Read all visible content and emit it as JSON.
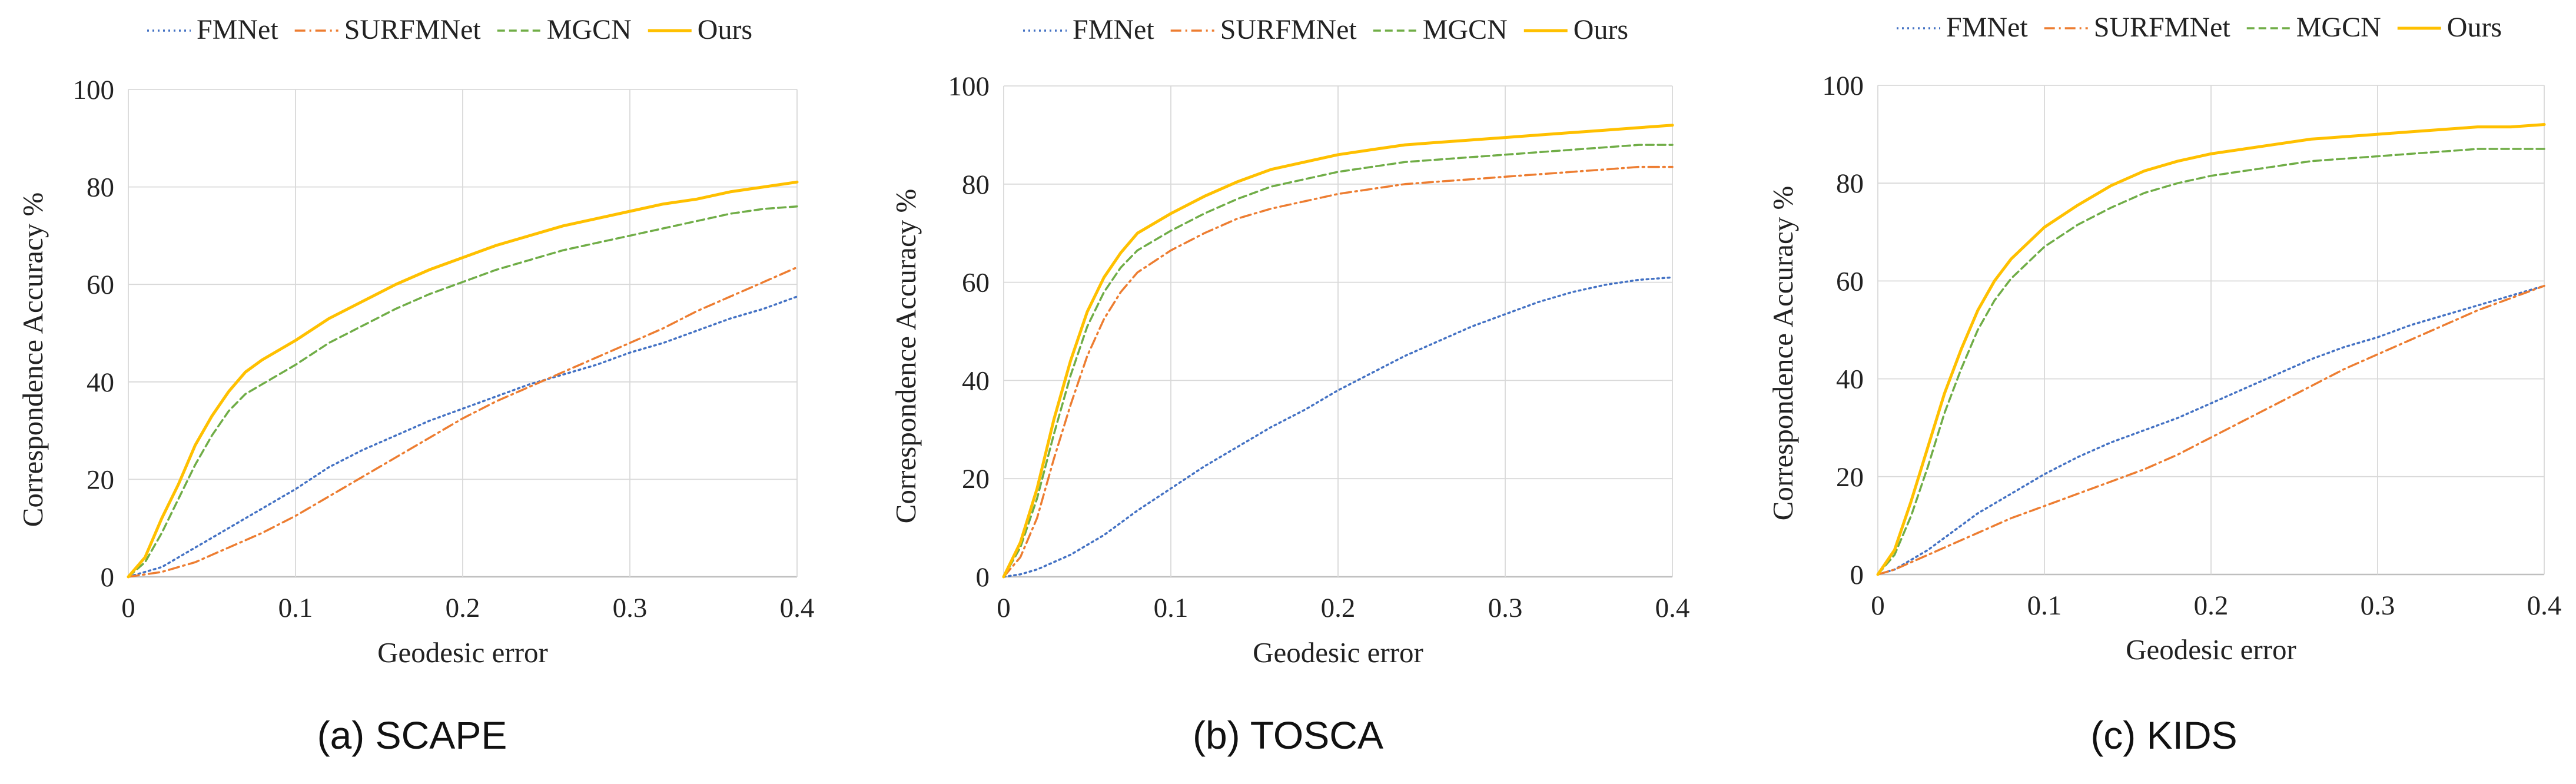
{
  "legend": [
    {
      "name": "FMNet",
      "color": "#4472C4",
      "dash": "dotted"
    },
    {
      "name": "SURFMNet",
      "color": "#ED7D31",
      "dash": "dashdot"
    },
    {
      "name": "MGCN",
      "color": "#70AD47",
      "dash": "dashed"
    },
    {
      "name": "Ours",
      "color": "#FFC000",
      "dash": "solid"
    }
  ],
  "chart_data": [
    {
      "type": "line",
      "caption": "(a) SCAPE",
      "xlabel": "Geodesic error",
      "ylabel": "Correspondence Accuracy %",
      "xlim": [
        0,
        0.4
      ],
      "ylim": [
        0,
        100
      ],
      "xticks": [
        "0",
        "0.1",
        "0.2",
        "0.3",
        "0.4"
      ],
      "yticks": [
        "0",
        "20",
        "40",
        "60",
        "80",
        "100"
      ],
      "x": [
        0,
        0.01,
        0.02,
        0.03,
        0.04,
        0.05,
        0.06,
        0.07,
        0.08,
        0.1,
        0.12,
        0.14,
        0.16,
        0.18,
        0.2,
        0.22,
        0.24,
        0.26,
        0.28,
        0.3,
        0.32,
        0.34,
        0.36,
        0.38,
        0.4
      ],
      "series": [
        {
          "name": "FMNet",
          "values": [
            0,
            1,
            2,
            4,
            6,
            8,
            10,
            12,
            14,
            18,
            22.5,
            26,
            29,
            32,
            34.5,
            37,
            39.5,
            41.5,
            43.5,
            46,
            48,
            50.5,
            53,
            55,
            57.5
          ]
        },
        {
          "name": "SURFMNet",
          "values": [
            0,
            0.5,
            1,
            2,
            3,
            4.5,
            6,
            7.5,
            9,
            12.5,
            16.5,
            20.5,
            24.5,
            28.5,
            32.5,
            36,
            39,
            42,
            45,
            48,
            51,
            54.5,
            57.5,
            60.5,
            63.5
          ]
        },
        {
          "name": "MGCN",
          "values": [
            0,
            3,
            9,
            16,
            23,
            29,
            34,
            37.5,
            39.5,
            43.5,
            48,
            51.5,
            55,
            58,
            60.5,
            63,
            65,
            67,
            68.5,
            70,
            71.5,
            73,
            74.5,
            75.5,
            76
          ]
        },
        {
          "name": "Ours",
          "values": [
            0,
            4,
            12,
            19,
            27,
            33,
            38,
            42,
            44.5,
            48.5,
            53,
            56.5,
            60,
            63,
            65.5,
            68,
            70,
            72,
            73.5,
            75,
            76.5,
            77.5,
            79,
            80,
            81
          ]
        }
      ]
    },
    {
      "type": "line",
      "caption": "(b) TOSCA",
      "xlabel": "Geodesic error",
      "ylabel": "Correspondence Accuracy %",
      "xlim": [
        0,
        0.4
      ],
      "ylim": [
        0,
        100
      ],
      "xticks": [
        "0",
        "0.1",
        "0.2",
        "0.3",
        "0.4"
      ],
      "yticks": [
        "0",
        "20",
        "40",
        "60",
        "80",
        "100"
      ],
      "x": [
        0,
        0.01,
        0.02,
        0.03,
        0.04,
        0.05,
        0.06,
        0.07,
        0.08,
        0.1,
        0.12,
        0.14,
        0.16,
        0.18,
        0.2,
        0.22,
        0.24,
        0.26,
        0.28,
        0.3,
        0.32,
        0.34,
        0.36,
        0.38,
        0.4
      ],
      "series": [
        {
          "name": "FMNet",
          "values": [
            0,
            0.5,
            1.5,
            3,
            4.5,
            6.5,
            8.5,
            11,
            13.5,
            18,
            22.5,
            26.5,
            30.5,
            34,
            38,
            41.5,
            45,
            48,
            51,
            53.5,
            56,
            58,
            59.5,
            60.5,
            61
          ]
        },
        {
          "name": "SURFMNet",
          "values": [
            0,
            4,
            12,
            24,
            35,
            45,
            52.5,
            58,
            62,
            66.5,
            70,
            73,
            75,
            76.5,
            78,
            79,
            80,
            80.5,
            81,
            81.5,
            82,
            82.5,
            83,
            83.5,
            83.5
          ]
        },
        {
          "name": "MGCN",
          "values": [
            0,
            6,
            16,
            29,
            41,
            51,
            58,
            63,
            66.5,
            70.5,
            74,
            77,
            79.5,
            81,
            82.5,
            83.5,
            84.5,
            85,
            85.5,
            86,
            86.5,
            87,
            87.5,
            88,
            88
          ]
        },
        {
          "name": "Ours",
          "values": [
            0,
            7,
            18,
            32,
            44,
            54,
            61,
            66,
            70,
            74,
            77.5,
            80.5,
            83,
            84.5,
            86,
            87,
            88,
            88.5,
            89,
            89.5,
            90,
            90.5,
            91,
            91.5,
            92
          ]
        }
      ]
    },
    {
      "type": "line",
      "caption": "(c) KIDS",
      "xlabel": "Geodesic error",
      "ylabel": "Correspondence Accuracy %",
      "xlim": [
        0,
        0.4
      ],
      "ylim": [
        0,
        100
      ],
      "xticks": [
        "0",
        "0.1",
        "0.2",
        "0.3",
        "0.4"
      ],
      "yticks": [
        "0",
        "20",
        "40",
        "60",
        "80",
        "100"
      ],
      "x": [
        0,
        0.01,
        0.02,
        0.03,
        0.04,
        0.05,
        0.06,
        0.07,
        0.08,
        0.1,
        0.12,
        0.14,
        0.16,
        0.18,
        0.2,
        0.22,
        0.24,
        0.26,
        0.28,
        0.3,
        0.32,
        0.34,
        0.36,
        0.38,
        0.4
      ],
      "series": [
        {
          "name": "FMNet",
          "values": [
            0,
            1,
            3,
            5,
            7.5,
            10,
            12.5,
            14.5,
            16.5,
            20.5,
            24,
            27,
            29.5,
            32,
            35,
            38,
            41,
            44,
            46.5,
            48.5,
            51,
            53,
            55,
            57,
            59
          ]
        },
        {
          "name": "SURFMNet",
          "values": [
            0,
            1,
            2.5,
            4,
            5.5,
            7,
            8.5,
            10,
            11.5,
            14,
            16.5,
            19,
            21.5,
            24.5,
            28,
            31.5,
            35,
            38.5,
            42,
            45,
            48,
            51,
            54,
            56.5,
            59
          ]
        },
        {
          "name": "MGCN",
          "values": [
            0,
            4,
            12,
            22,
            33,
            42,
            50,
            56,
            60.5,
            67,
            71.5,
            75,
            78,
            80,
            81.5,
            82.5,
            83.5,
            84.5,
            85,
            85.5,
            86,
            86.5,
            87,
            87,
            87
          ]
        },
        {
          "name": "Ours",
          "values": [
            0,
            5,
            15,
            26,
            37,
            46,
            54,
            60,
            64.5,
            71,
            75.5,
            79.5,
            82.5,
            84.5,
            86,
            87,
            88,
            89,
            89.5,
            90,
            90.5,
            91,
            91.5,
            91.5,
            92
          ]
        }
      ]
    }
  ]
}
